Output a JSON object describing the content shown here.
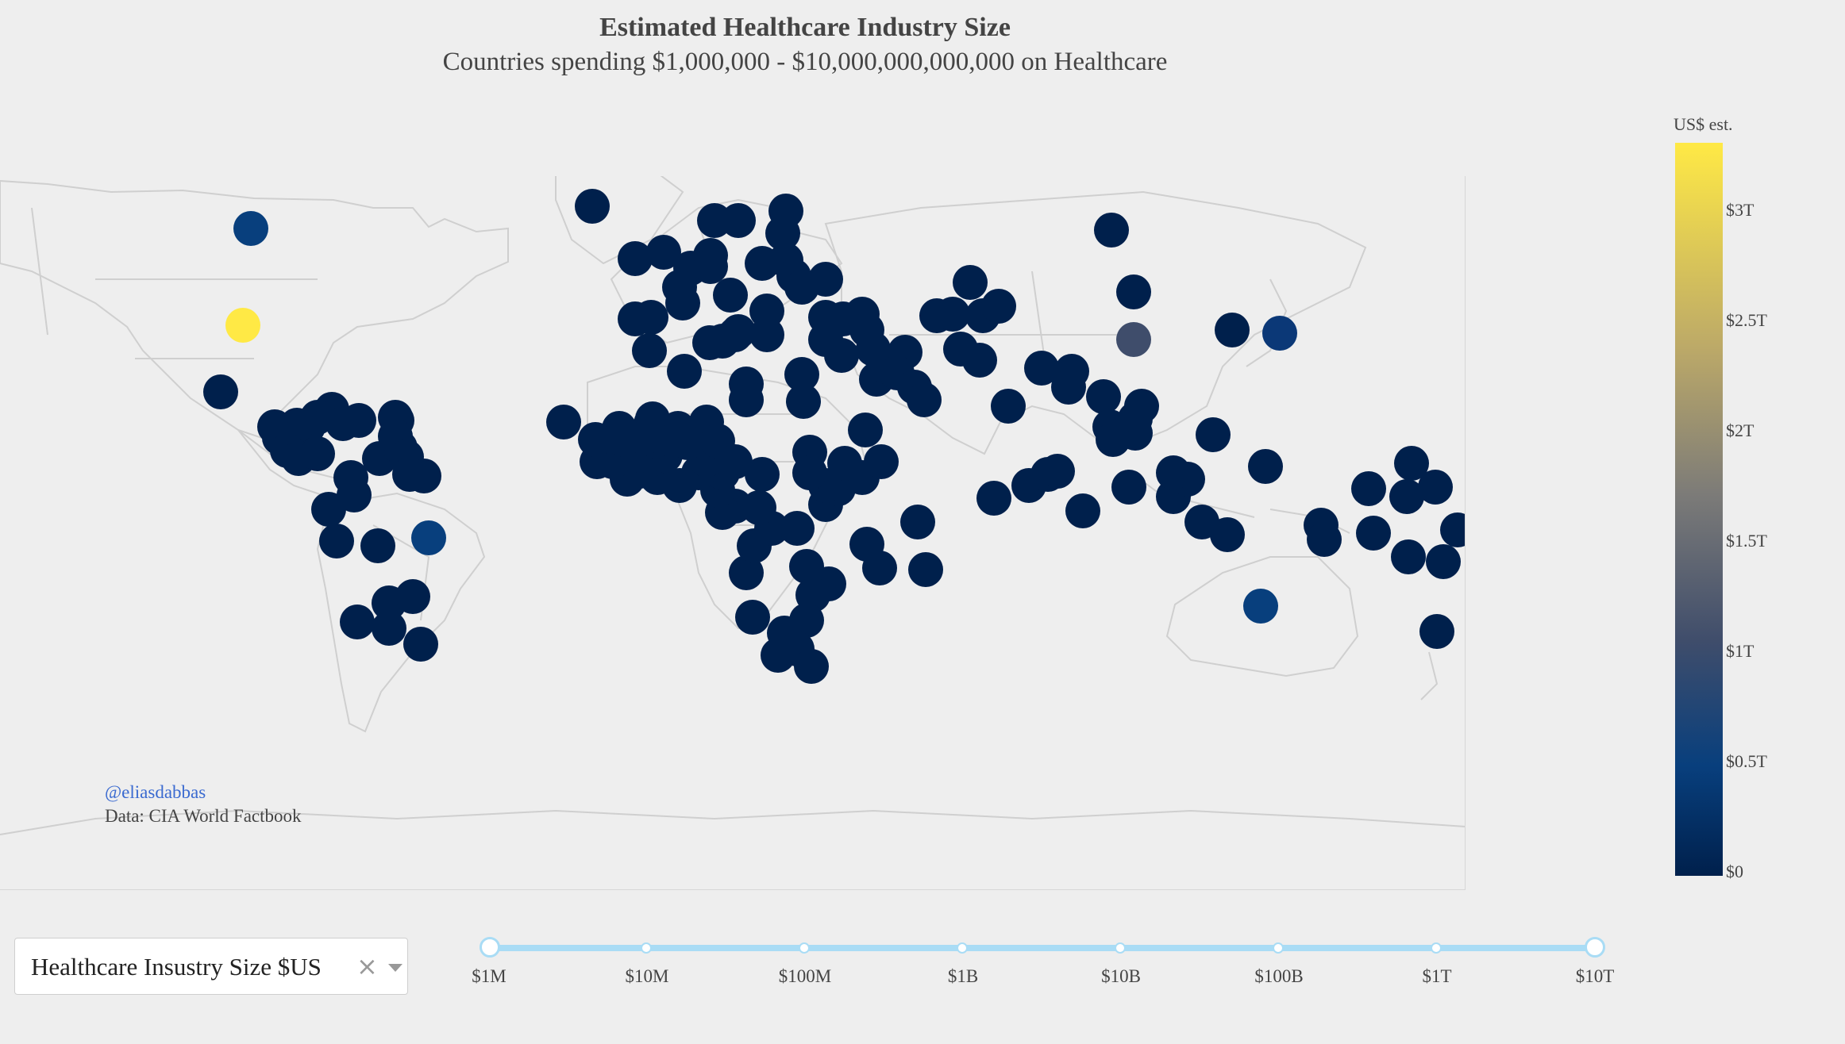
{
  "title": "Estimated Healthcare Industry Size",
  "subtitle": "Countries spending $1,000,000 - $10,000,000,000,000 on Healthcare",
  "credit": "@eliasdabbas",
  "source": "Data: CIA World Factbook",
  "colorbar": {
    "title": "US$ est.",
    "ticks": [
      "$3T",
      "$2.5T",
      "$2T",
      "$1.5T",
      "$1T",
      "$0.5T",
      "$0"
    ],
    "colors": {
      "high": "#ffe945",
      "low": "#00204c"
    }
  },
  "dropdown": {
    "value": "Healthcare Insustry Size $US"
  },
  "slider": {
    "labels": [
      "$1M",
      "$10M",
      "$100M",
      "$1B",
      "$10B",
      "$100B",
      "$1T",
      "$10T"
    ]
  },
  "map_markers_note_free": true
}
